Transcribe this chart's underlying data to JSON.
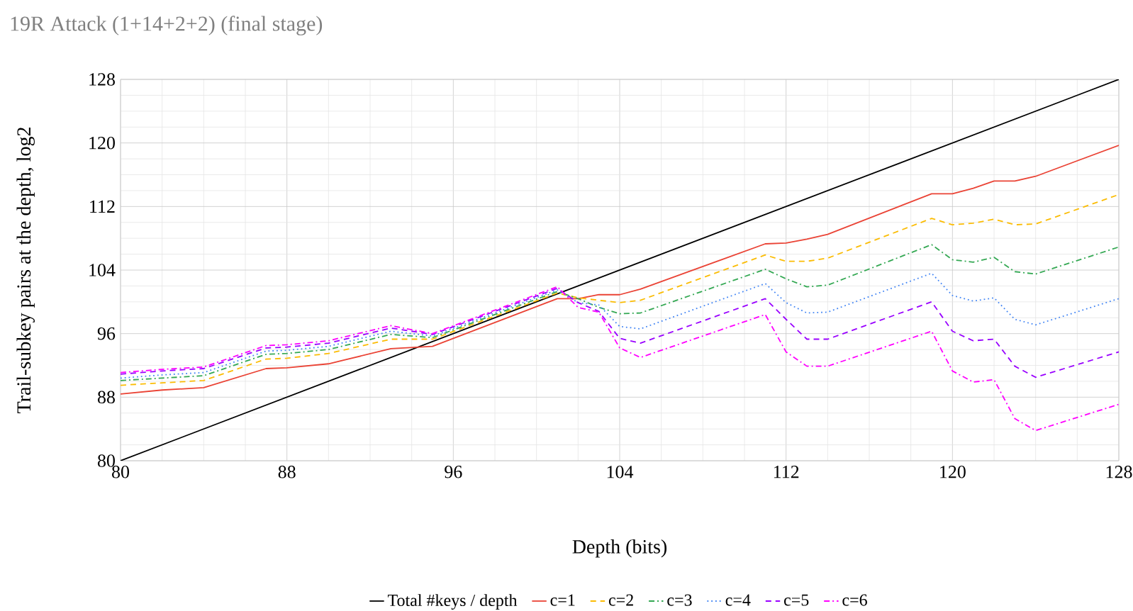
{
  "chart_data": {
    "type": "line",
    "title": "19R Attack (1+14+2+2) (final stage)",
    "xlabel": "Depth (bits)",
    "ylabel": "Trail-subkey pairs at the depth, log2",
    "x": [
      80,
      82,
      84,
      87,
      88,
      90,
      93,
      95,
      101,
      102,
      103,
      104,
      105,
      111,
      112,
      113,
      114,
      119,
      120,
      121,
      122,
      123,
      124,
      128
    ],
    "series": [
      {
        "name": "Total #keys / depth",
        "color": "#000000",
        "line_style": "solid",
        "x": [
          80,
          128
        ],
        "values": [
          80,
          128
        ]
      },
      {
        "name": "c=1",
        "color": "#ea4335",
        "line_style": "solid",
        "values": [
          88.4,
          88.9,
          89.2,
          91.6,
          91.7,
          92.2,
          94.1,
          94.4,
          100.4,
          100.4,
          100.9,
          100.9,
          101.6,
          107.3,
          107.4,
          107.9,
          108.5,
          113.6,
          113.6,
          114.3,
          115.2,
          115.2,
          115.8,
          119.7
        ]
      },
      {
        "name": "c=2",
        "color": "#fbbc04",
        "line_style": "dashed",
        "values": [
          89.5,
          89.8,
          90.1,
          92.8,
          92.9,
          93.5,
          95.3,
          95.3,
          101.1,
          100.5,
          100.2,
          99.9,
          100.2,
          105.9,
          105.1,
          105.1,
          105.5,
          110.5,
          109.7,
          109.9,
          110.4,
          109.7,
          109.8,
          113.5
        ]
      },
      {
        "name": "c=3",
        "color": "#34a853",
        "line_style": "dashdot",
        "values": [
          90.1,
          90.4,
          90.7,
          93.4,
          93.5,
          94.0,
          95.9,
          95.5,
          101.3,
          100.4,
          99.3,
          98.5,
          98.6,
          104.1,
          102.9,
          101.9,
          102.1,
          107.2,
          105.3,
          105.0,
          105.6,
          103.8,
          103.5,
          106.9
        ]
      },
      {
        "name": "c=4",
        "color": "#4285f4",
        "line_style": "dotted",
        "values": [
          90.4,
          90.8,
          91.1,
          93.8,
          93.9,
          94.4,
          96.3,
          95.7,
          101.5,
          99.9,
          99.6,
          96.9,
          96.6,
          102.3,
          99.9,
          98.6,
          98.7,
          103.6,
          100.8,
          100.1,
          100.5,
          97.8,
          97.1,
          100.4
        ]
      },
      {
        "name": "c=5",
        "color": "#9900ff",
        "line_style": "dashed",
        "values": [
          90.9,
          91.3,
          91.6,
          94.2,
          94.3,
          94.8,
          96.7,
          95.9,
          101.7,
          99.9,
          98.8,
          95.4,
          94.8,
          100.4,
          97.8,
          95.3,
          95.3,
          100.0,
          96.3,
          95.1,
          95.3,
          91.9,
          90.5,
          93.7
        ]
      },
      {
        "name": "c=6",
        "color": "#ff00ff",
        "line_style": "dashdot",
        "values": [
          91.1,
          91.5,
          91.8,
          94.5,
          94.6,
          95.1,
          97.0,
          96.0,
          101.9,
          99.3,
          98.7,
          94.2,
          93.0,
          98.4,
          93.7,
          91.9,
          91.9,
          96.3,
          91.3,
          89.9,
          90.2,
          85.3,
          83.8,
          87.1
        ]
      }
    ],
    "xlim": [
      80,
      128
    ],
    "ylim": [
      80,
      128
    ],
    "xticks": [
      80,
      88,
      96,
      104,
      112,
      120,
      128
    ],
    "yticks": [
      80,
      88,
      96,
      104,
      112,
      120,
      128
    ],
    "grid": true,
    "legend": "bottom"
  }
}
